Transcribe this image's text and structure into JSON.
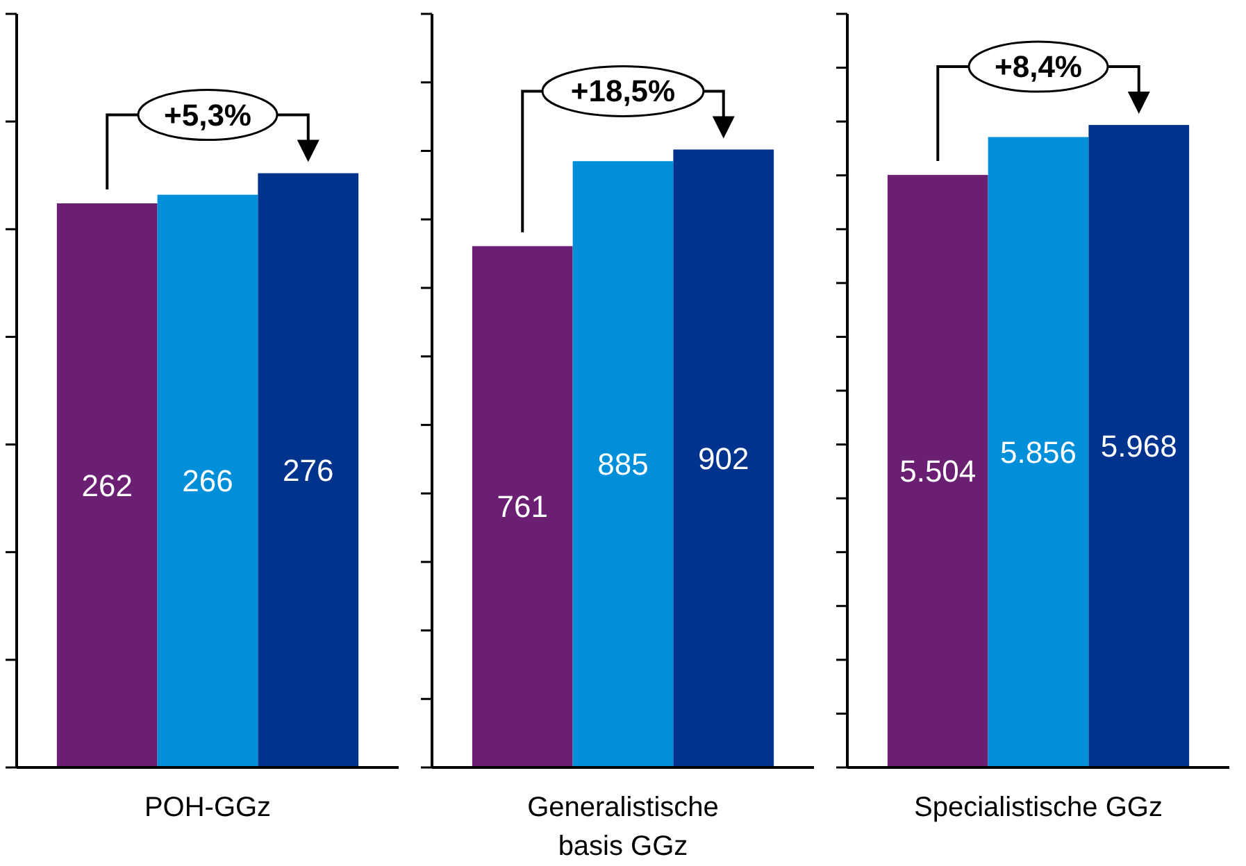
{
  "chart_data": [
    {
      "type": "bar",
      "xlabel": "POH-GGz",
      "categories": [
        null,
        null,
        null
      ],
      "values": [
        262,
        266,
        276
      ],
      "colors": [
        "#6b1f73",
        "#008fd8",
        "#00338d"
      ],
      "ylim": [
        0,
        350
      ],
      "yticks": [
        {
          "value": 0,
          "label": null
        },
        {
          "value": 50,
          "label": null
        },
        {
          "value": 100,
          "label": null
        },
        {
          "value": 150,
          "label": null
        },
        {
          "value": 200,
          "label": null
        },
        {
          "value": 250,
          "label": null
        },
        {
          "value": 300,
          "label": null
        },
        {
          "value": 350,
          "label": null
        }
      ],
      "data_labels": true,
      "annotations": [
        "+5,3%"
      ]
    },
    {
      "type": "bar",
      "xlabel": "Generalistische basis GGz",
      "categories": [
        null,
        null,
        null
      ],
      "values": [
        761,
        885,
        902
      ],
      "colors": [
        "#6b1f73",
        "#008fd8",
        "#00338d"
      ],
      "ylim": [
        0,
        1100
      ],
      "yticks": [
        {
          "value": 0,
          "label": null
        },
        {
          "value": 100,
          "label": null
        },
        {
          "value": 200,
          "label": null
        },
        {
          "value": 300,
          "label": null
        },
        {
          "value": 400,
          "label": null
        },
        {
          "value": 500,
          "label": null
        },
        {
          "value": 600,
          "label": null
        },
        {
          "value": 700,
          "label": null
        },
        {
          "value": 800,
          "label": null
        },
        {
          "value": 900,
          "label": null
        },
        {
          "value": 1000,
          "label": null
        },
        {
          "value": 1100,
          "label": null
        }
      ],
      "data_labels": true,
      "annotations": [
        "+18,5%"
      ]
    },
    {
      "type": "bar",
      "xlabel": "Specialistische GGz",
      "categories": [
        null,
        null,
        null
      ],
      "values": [
        5504,
        5856,
        5968
      ],
      "colors": [
        "#6b1f73",
        "#008fd8",
        "#00338d"
      ],
      "ylim": [
        0,
        7000
      ],
      "yticks": [
        {
          "value": 0,
          "label": null
        },
        {
          "value": 500,
          "label": null
        },
        {
          "value": 1000,
          "label": null
        },
        {
          "value": 1500,
          "label": null
        },
        {
          "value": 2000,
          "label": null
        },
        {
          "value": 2500,
          "label": null
        },
        {
          "value": 3000,
          "label": null
        },
        {
          "value": 3500,
          "label": null
        },
        {
          "value": 4000,
          "label": null
        },
        {
          "value": 4500,
          "label": null
        },
        {
          "value": 5000,
          "label": null
        },
        {
          "value": 5500,
          "label": null
        },
        {
          "value": 6000,
          "label": null
        },
        {
          "value": 6500,
          "label": null
        },
        {
          "value": 7000,
          "label": null
        }
      ],
      "value_labels": [
        "5.504",
        "5.856",
        "5.968"
      ],
      "annotations": [
        "+8,4%"
      ]
    }
  ]
}
